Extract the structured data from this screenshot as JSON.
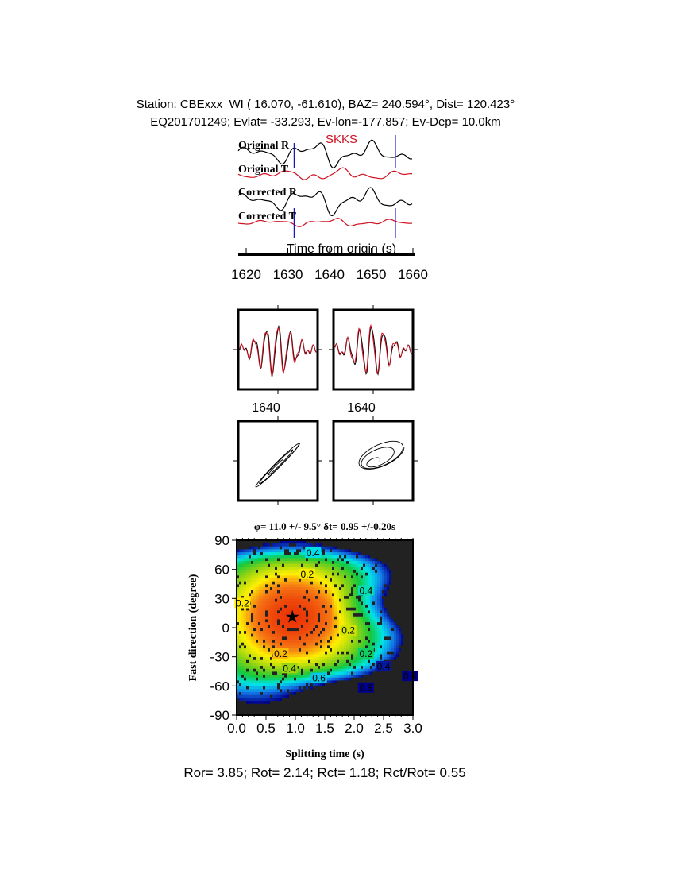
{
  "header": {
    "line1": "Station: CBExxx_WI (  16.070,  -61.610), BAZ=  240.594°, Dist=  120.423°",
    "line2": "EQ201701249; Evlat= -33.293, Ev-lon=-177.857; Ev-Dep= 10.0km"
  },
  "colors": {
    "radial": "#000000",
    "transverse": "#d01020",
    "window": "#1010c0"
  },
  "chart_data": [
    {
      "type": "line",
      "phase_label": "SKKS",
      "traces": [
        "Original R",
        "Original T",
        "Corrected R",
        "Corrected T"
      ],
      "xlabel": "Time from origin (s)",
      "xlim": [
        1618,
        1662
      ],
      "xticks": [
        "1620",
        "1630",
        "1640",
        "1650",
        "1660"
      ],
      "window": [
        1631.5,
        1655.8
      ]
    },
    {
      "type": "line",
      "panels": [
        "waveform-before",
        "waveform-after"
      ],
      "xticks": [
        "1640",
        "1640"
      ]
    },
    {
      "type": "scatter",
      "panels": [
        "particle-motion-before",
        "particle-motion-after"
      ]
    },
    {
      "type": "heatmap",
      "title": "φ= 11.0 +/- 9.5° δt= 0.95 +/-0.20s",
      "xlabel": "Splitting time (s)",
      "ylabel": "Fast direction (degree)",
      "xlim": [
        0,
        3
      ],
      "ylim": [
        -90,
        90
      ],
      "xticks": [
        "0.0",
        "0.5",
        "1.0",
        "1.5",
        "2.0",
        "2.5",
        "3.0"
      ],
      "yticks": [
        "90",
        "60",
        "30",
        "0",
        "-30",
        "-60",
        "-90"
      ],
      "best_fit": {
        "phi": 11.0,
        "dt": 0.95
      },
      "contour_labels": [
        {
          "text": "0.4",
          "dt": 1.3,
          "phi": 77
        },
        {
          "text": "0.2",
          "dt": 1.2,
          "phi": 55
        },
        {
          "text": "0.4",
          "dt": 2.2,
          "phi": 38
        },
        {
          "text": "0.2",
          "dt": 0.1,
          "phi": 25
        },
        {
          "text": "0.2",
          "dt": 1.9,
          "phi": -3
        },
        {
          "text": "0.2",
          "dt": 0.75,
          "phi": -27
        },
        {
          "text": "0.2",
          "dt": 2.2,
          "phi": -27
        },
        {
          "text": "0.4",
          "dt": 0.9,
          "phi": -42
        },
        {
          "text": "0.4",
          "dt": 2.5,
          "phi": -40
        },
        {
          "text": "0.6",
          "dt": 2.95,
          "phi": -50
        },
        {
          "text": "0.6",
          "dt": 1.4,
          "phi": -52
        },
        {
          "text": "0.8",
          "dt": 2.2,
          "phi": -62
        }
      ]
    }
  ],
  "footer": "Ror= 3.85; Rot= 2.14; Rct= 1.18; Rct/Rot= 0.55"
}
